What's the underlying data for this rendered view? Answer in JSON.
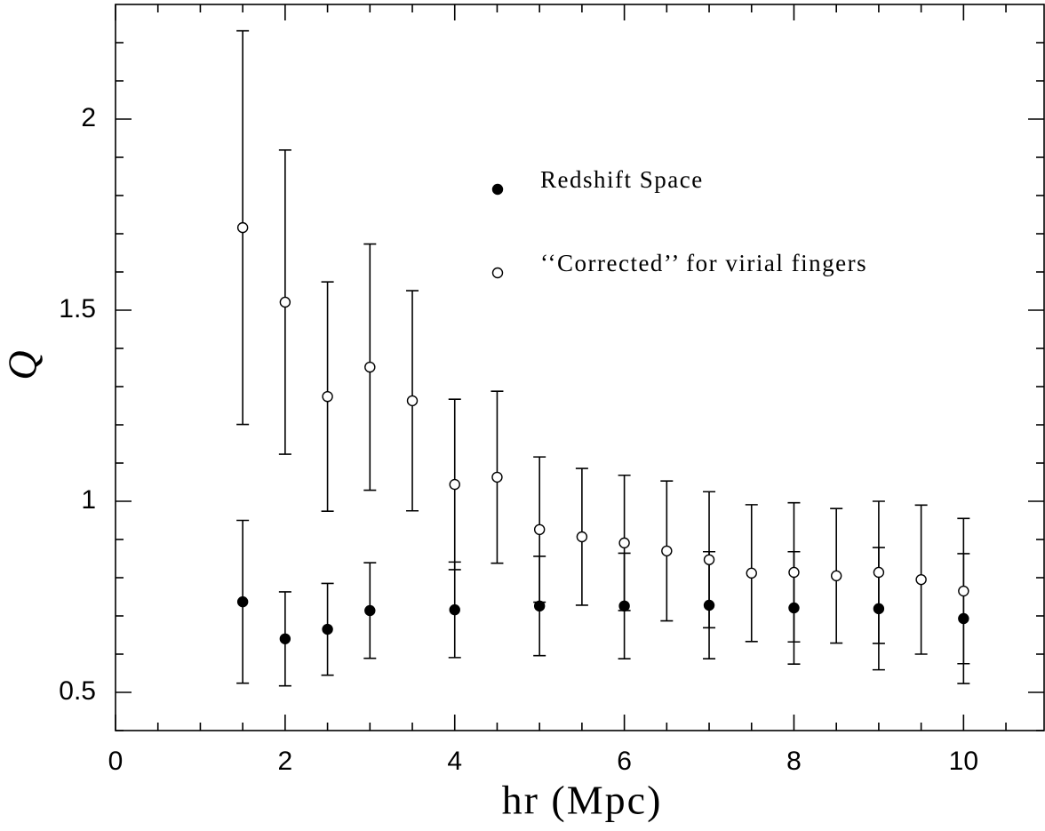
{
  "chart_data": {
    "type": "scatter",
    "xlabel": "hr (Mpc)",
    "ylabel": "Q",
    "xlim": [
      0,
      10.95
    ],
    "ylim": [
      0.4,
      2.3
    ],
    "xticks": [
      0,
      2,
      4,
      6,
      8,
      10
    ],
    "xminor": [
      0.5,
      1,
      1.5,
      2.5,
      3,
      3.5,
      4.5,
      5,
      5.5,
      6.5,
      7,
      7.5,
      8.5,
      9,
      9.5,
      10.5
    ],
    "yticks": [
      0.5,
      1,
      1.5,
      2
    ],
    "yminor": [
      0.4,
      0.6,
      0.7,
      0.8,
      0.9,
      1.1,
      1.2,
      1.3,
      1.4,
      1.6,
      1.7,
      1.8,
      1.9,
      2.1,
      2.2
    ],
    "series": [
      {
        "name": "Redshift Space",
        "color": "#000000",
        "marker": "filled",
        "x": [
          1.5,
          2,
          2.5,
          3,
          4,
          5,
          6,
          7,
          8,
          9,
          10
        ],
        "values": [
          0.737,
          0.64,
          0.665,
          0.714,
          0.716,
          0.726,
          0.726,
          0.728,
          0.721,
          0.719,
          0.693
        ],
        "errors": [
          0.213,
          0.123,
          0.12,
          0.125,
          0.125,
          0.13,
          0.138,
          0.14,
          0.147,
          0.16,
          0.17
        ]
      },
      {
        "name": "‘‘Corrected’’ for virial fingers",
        "color": "#000000",
        "marker": "open",
        "x": [
          1.5,
          2,
          2.5,
          3,
          3.5,
          4,
          4.5,
          5,
          5.5,
          6,
          6.5,
          7,
          7.5,
          8,
          8.5,
          9,
          9.5,
          10
        ],
        "values": [
          1.716,
          1.521,
          1.274,
          1.351,
          1.263,
          1.044,
          1.063,
          0.926,
          0.907,
          0.891,
          0.87,
          0.847,
          0.812,
          0.814,
          0.805,
          0.814,
          0.795,
          0.765
        ],
        "errors": [
          0.515,
          0.398,
          0.3,
          0.322,
          0.288,
          0.223,
          0.225,
          0.19,
          0.179,
          0.177,
          0.183,
          0.178,
          0.179,
          0.182,
          0.176,
          0.186,
          0.195,
          0.19
        ]
      }
    ]
  }
}
